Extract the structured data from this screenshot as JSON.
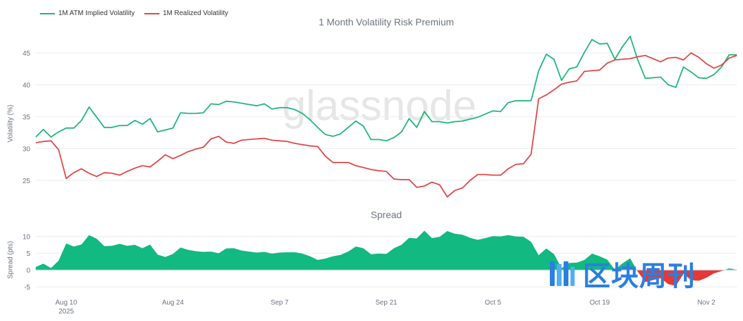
{
  "legend": {
    "implied_label": "1M ATM Implied Volatility",
    "realized_label": "1M Realized Volatility"
  },
  "watermark_text": "glassnode",
  "corner_logo_text": "区块周刊",
  "colors": {
    "implied": "#1fb57a",
    "realized": "#e04646",
    "spread_pos": "#12b981",
    "spread_neg": "#e53935",
    "grid": "#e9ebef",
    "text": "#6b7280",
    "logo": "#2a7fe0"
  },
  "chart_data": [
    {
      "type": "line",
      "title": "1 Month Volatility Risk Premium",
      "xlabel": "",
      "ylabel": "Volatility (%)",
      "ylim": [
        21,
        49
      ],
      "yticks": [
        25,
        30,
        35,
        40,
        45
      ],
      "xlim": [
        0,
        92
      ],
      "xticks": [
        {
          "x": 4,
          "label": "Aug 10",
          "sublabel": "2025"
        },
        {
          "x": 18,
          "label": "Aug 24"
        },
        {
          "x": 32,
          "label": "Sep 7"
        },
        {
          "x": 46,
          "label": "Sep 21"
        },
        {
          "x": 60,
          "label": "Oct 5"
        },
        {
          "x": 74,
          "label": "Oct 19"
        },
        {
          "x": 88,
          "label": "Nov 2"
        }
      ],
      "series": [
        {
          "name": "1M ATM Implied Volatility",
          "x": [
            0,
            1,
            2,
            3,
            4,
            5,
            6,
            7,
            8,
            9,
            10,
            11,
            12,
            13,
            14,
            15,
            16,
            17,
            18,
            19,
            20,
            21,
            22,
            23,
            24,
            25,
            26,
            27,
            28,
            29,
            30,
            31,
            32,
            33,
            34,
            35,
            36,
            37,
            38,
            39,
            40,
            41,
            42,
            43,
            44,
            45,
            46,
            47,
            48,
            49,
            50,
            51,
            52,
            53,
            54,
            55,
            56,
            57,
            58,
            59,
            60,
            61,
            62,
            63,
            64,
            65,
            66,
            67,
            68,
            69,
            70,
            71,
            72,
            73,
            74,
            75,
            76,
            77,
            78,
            79,
            80,
            81,
            82,
            83,
            84,
            85,
            86,
            87,
            88,
            89,
            90,
            91,
            92
          ],
          "values": [
            31.8,
            33.0,
            31.8,
            32.6,
            33.2,
            33.2,
            34.4,
            36.5,
            34.9,
            33.3,
            33.3,
            33.6,
            33.6,
            34.4,
            33.8,
            34.7,
            32.6,
            32.9,
            33.2,
            35.6,
            35.5,
            35.5,
            35.6,
            37.0,
            36.9,
            37.4,
            37.3,
            37.1,
            36.9,
            36.7,
            37.0,
            36.2,
            36.4,
            36.4,
            36.1,
            35.5,
            34.5,
            33.3,
            32.2,
            31.9,
            32.3,
            33.3,
            34.3,
            33.5,
            31.4,
            31.4,
            31.2,
            31.7,
            32.6,
            34.7,
            33.3,
            35.8,
            34.2,
            34.2,
            34.0,
            34.2,
            34.3,
            34.6,
            34.9,
            35.4,
            35.9,
            35.8,
            37.2,
            37.5,
            37.5,
            37.5,
            42.2,
            44.8,
            44.0,
            40.7,
            42.5,
            42.8,
            45.1,
            47.1,
            46.4,
            46.5,
            44.0,
            46.0,
            47.6,
            43.9,
            41.0,
            41.1,
            41.2,
            40.0,
            39.6,
            42.8,
            42.0,
            41.1,
            41.0,
            41.6,
            42.8,
            44.7,
            44.7
          ]
        },
        {
          "name": "1M Realized Volatility",
          "x": [
            0,
            1,
            2,
            3,
            4,
            5,
            6,
            7,
            8,
            9,
            10,
            11,
            12,
            13,
            14,
            15,
            16,
            17,
            18,
            19,
            20,
            21,
            22,
            23,
            24,
            25,
            26,
            27,
            28,
            29,
            30,
            31,
            32,
            33,
            34,
            35,
            36,
            37,
            38,
            39,
            40,
            41,
            42,
            43,
            44,
            45,
            46,
            47,
            48,
            49,
            50,
            51,
            52,
            53,
            54,
            55,
            56,
            57,
            58,
            59,
            60,
            61,
            62,
            63,
            64,
            65,
            66,
            67,
            68,
            69,
            70,
            71,
            72,
            73,
            74,
            75,
            76,
            77,
            78,
            79,
            80,
            81,
            82,
            83,
            84,
            85,
            86,
            87,
            88,
            89,
            90,
            91,
            92
          ],
          "values": [
            30.9,
            31.1,
            31.2,
            29.8,
            25.3,
            26.2,
            26.8,
            26.1,
            25.6,
            26.2,
            26.1,
            25.8,
            26.4,
            26.9,
            27.3,
            27.1,
            28.0,
            29.0,
            28.4,
            28.9,
            29.5,
            29.9,
            30.2,
            31.5,
            31.9,
            31.0,
            30.8,
            31.3,
            31.4,
            31.5,
            31.6,
            31.3,
            31.2,
            31.1,
            30.8,
            30.6,
            30.4,
            30.3,
            28.8,
            27.8,
            27.8,
            27.8,
            27.3,
            27.0,
            26.7,
            26.5,
            26.4,
            25.2,
            25.1,
            25.1,
            23.9,
            24.1,
            24.7,
            24.3,
            22.4,
            23.4,
            23.8,
            25.0,
            25.9,
            25.9,
            25.8,
            25.8,
            26.8,
            27.5,
            27.6,
            29.1,
            37.8,
            38.4,
            39.2,
            40.1,
            40.4,
            40.6,
            42.1,
            42.2,
            42.3,
            43.4,
            43.9,
            44.0,
            44.1,
            44.4,
            44.6,
            44.1,
            43.6,
            44.2,
            44.3,
            43.9,
            45.0,
            44.3,
            43.3,
            42.6,
            43.1,
            44.2,
            44.6
          ]
        }
      ]
    },
    {
      "type": "area",
      "title": "Spread",
      "xlabel": "",
      "ylabel": "Spread (pts)",
      "ylim": [
        -7,
        13
      ],
      "yticks": [
        -5,
        0,
        5,
        10
      ],
      "xlim": [
        0,
        92
      ],
      "series": [
        {
          "name": "Spread",
          "x": [
            0,
            1,
            2,
            3,
            4,
            5,
            6,
            7,
            8,
            9,
            10,
            11,
            12,
            13,
            14,
            15,
            16,
            17,
            18,
            19,
            20,
            21,
            22,
            23,
            24,
            25,
            26,
            27,
            28,
            29,
            30,
            31,
            32,
            33,
            34,
            35,
            36,
            37,
            38,
            39,
            40,
            41,
            42,
            43,
            44,
            45,
            46,
            47,
            48,
            49,
            50,
            51,
            52,
            53,
            54,
            55,
            56,
            57,
            58,
            59,
            60,
            61,
            62,
            63,
            64,
            65,
            66,
            67,
            68,
            69,
            70,
            71,
            72,
            73,
            74,
            75,
            76,
            77,
            78,
            79,
            80,
            81,
            82,
            83,
            84,
            85,
            86,
            87,
            88,
            89,
            90,
            91,
            92
          ],
          "values": [
            0.9,
            1.9,
            0.6,
            2.8,
            7.9,
            7.0,
            7.6,
            10.4,
            9.3,
            7.1,
            7.2,
            7.8,
            7.2,
            7.5,
            6.5,
            7.6,
            4.6,
            3.9,
            4.8,
            6.7,
            6.0,
            5.6,
            5.4,
            5.5,
            5.0,
            6.4,
            6.5,
            5.8,
            5.5,
            5.2,
            5.4,
            4.9,
            5.2,
            5.3,
            5.3,
            4.9,
            4.1,
            3.0,
            3.4,
            4.1,
            4.5,
            5.5,
            7.0,
            6.5,
            4.7,
            4.9,
            4.8,
            6.5,
            7.5,
            9.6,
            9.4,
            11.7,
            9.5,
            9.9,
            11.6,
            10.8,
            10.5,
            9.6,
            9.0,
            9.5,
            10.1,
            10.0,
            10.4,
            10.0,
            9.9,
            8.4,
            4.4,
            6.4,
            4.8,
            0.6,
            2.1,
            2.2,
            3.0,
            4.9,
            4.1,
            3.1,
            0.1,
            2.0,
            3.5,
            -0.5,
            -3.6,
            -3.0,
            -2.4,
            -4.2,
            -4.7,
            -1.1,
            -3.0,
            -3.2,
            -2.3,
            -1.0,
            -0.3,
            0.5,
            0.1
          ]
        }
      ]
    }
  ]
}
